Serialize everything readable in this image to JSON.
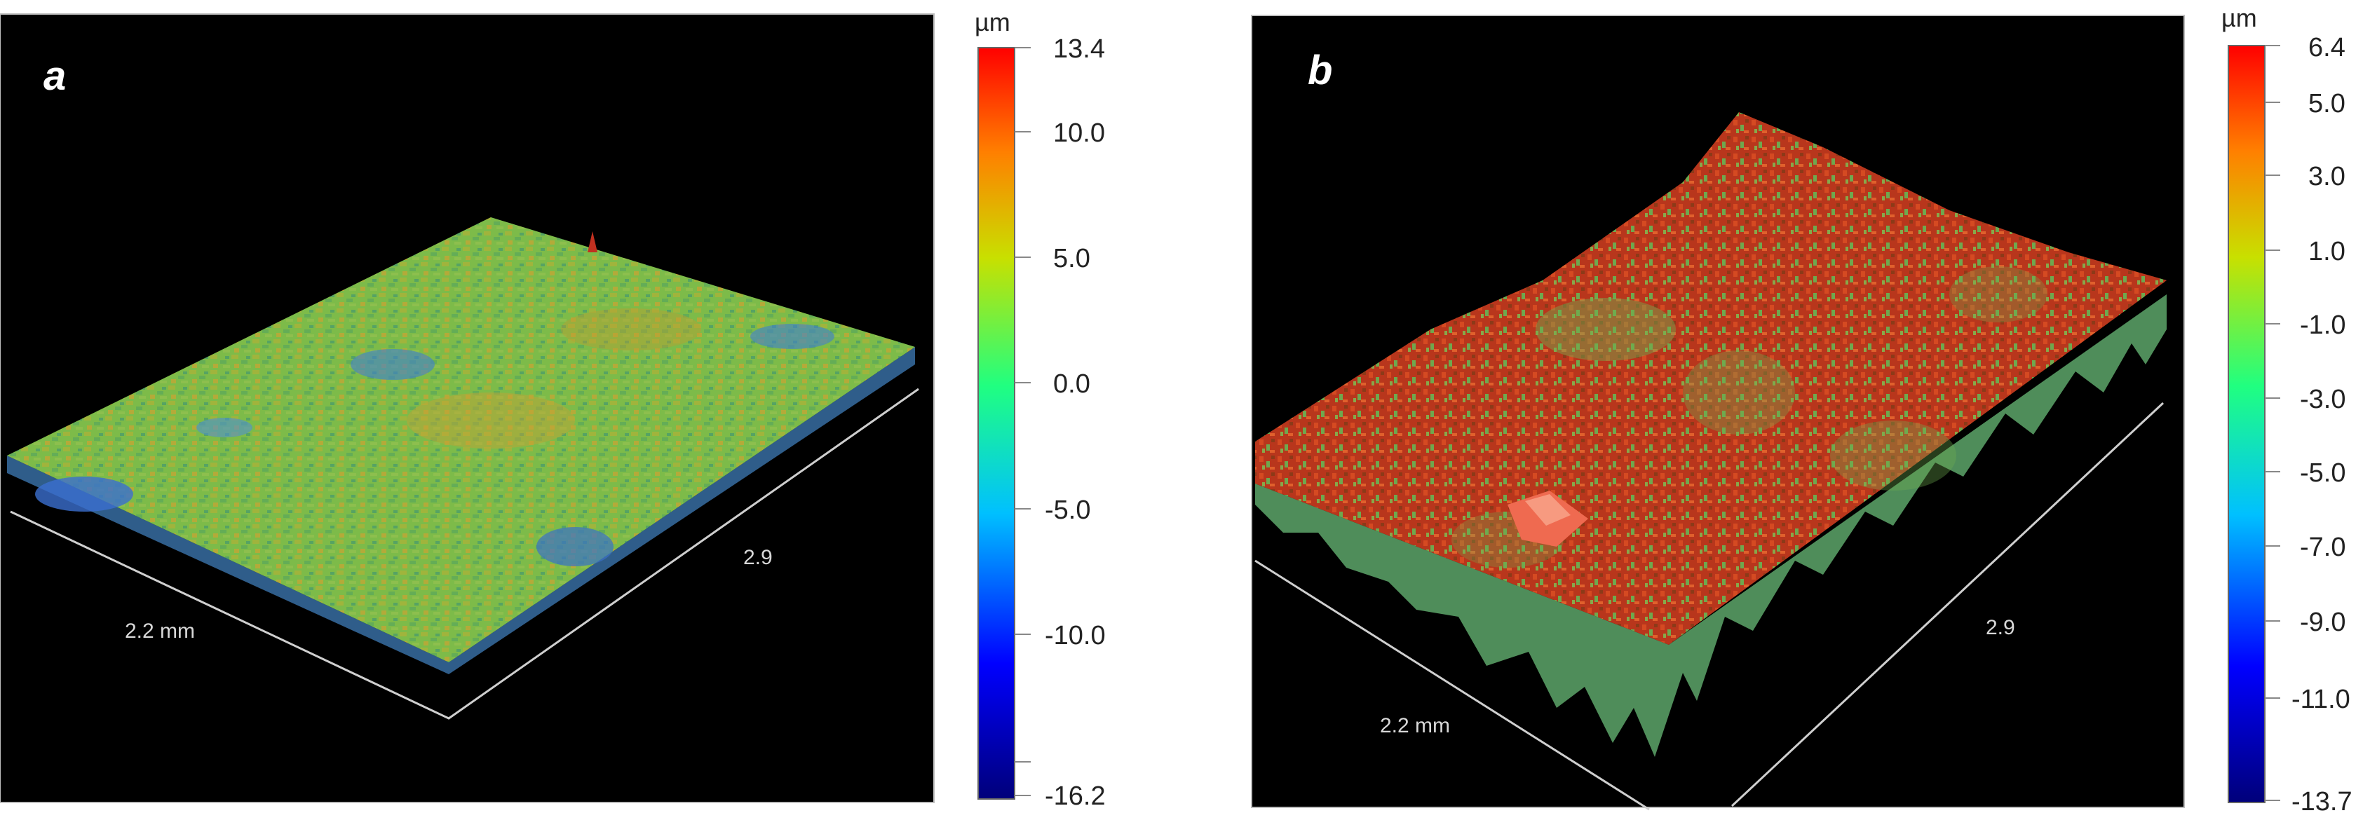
{
  "panels": [
    {
      "label": "a",
      "axis_x_label": "2.2 mm",
      "axis_y_label": "2.9",
      "scale_unit": "µm",
      "scale_max": "13.4",
      "scale_ticks": [
        "10.0",
        "5.0",
        "0.0",
        "-5.0",
        "-10.0"
      ],
      "scale_min": "-16.2",
      "dominant_colors": [
        "#7fbf4a",
        "#b5a334",
        "#3f7fd0"
      ]
    },
    {
      "label": "b",
      "axis_x_label": "2.2 mm",
      "axis_y_label": "2.9",
      "scale_unit": "µm",
      "scale_max": "6.4",
      "scale_ticks": [
        "5.0",
        "3.0",
        "1.0",
        "-1.0",
        "-3.0",
        "-5.0",
        "-7.0",
        "-9.0",
        "-11.0"
      ],
      "scale_min": "-13.7",
      "dominant_colors": [
        "#c0301c",
        "#7cb24a",
        "#e05030"
      ]
    }
  ],
  "colors": {
    "plot_background": "#000000",
    "axis_line": "#cfcfcf",
    "colorbar": [
      "#00007a",
      "#0000ff",
      "#00c0ff",
      "#20ff80",
      "#c0e000",
      "#ff8000",
      "#ff0000"
    ]
  }
}
